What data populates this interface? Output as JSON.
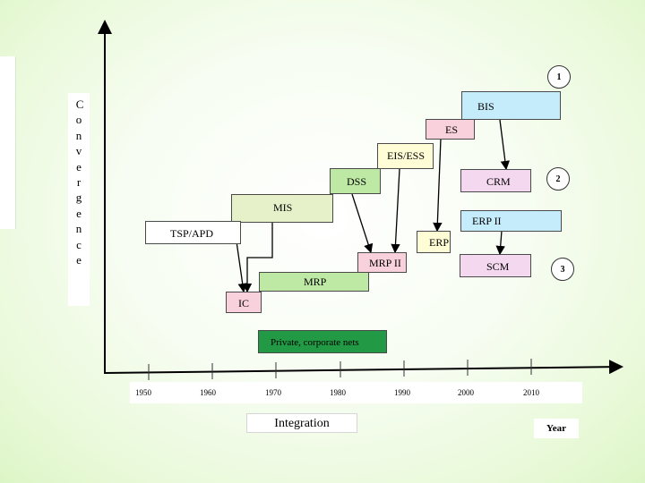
{
  "y_axis_label": "Convergence",
  "x_axis_label": "Year",
  "integration_label": "Integration",
  "x_ticks": [
    "1950",
    "1960",
    "1970",
    "1980",
    "1990",
    "2000",
    "2010"
  ],
  "markers": [
    "1",
    "2",
    "3"
  ],
  "boxes": {
    "bis": "BIS",
    "es": "ES",
    "eis_ess": "EIS/ESS",
    "dss": "DSS",
    "crm": "CRM",
    "mis": "MIS",
    "erp2": "ERP II",
    "tsp_apd": "TSP/APD",
    "erp": "ERP",
    "mrp2": "MRP II",
    "scm": "SCM",
    "mrp": "MRP",
    "ic": "IC",
    "nets": "Private, corporate nets"
  },
  "colors": {
    "bis": "#c5ecfb",
    "es": "#f9d1dd",
    "eis_ess": "#fffdd6",
    "dss": "#bde9a4",
    "crm": "#f4d8ef",
    "mis": "#e6f1c9",
    "erp2": "#c5ecfb",
    "tsp_apd": "#ffffff",
    "erp": "#fffdd6",
    "mrp2": "#f9d1dd",
    "scm": "#f4d8ef",
    "mrp": "#bde9a4",
    "ic": "#f9d1dd",
    "nets": "#229944"
  }
}
